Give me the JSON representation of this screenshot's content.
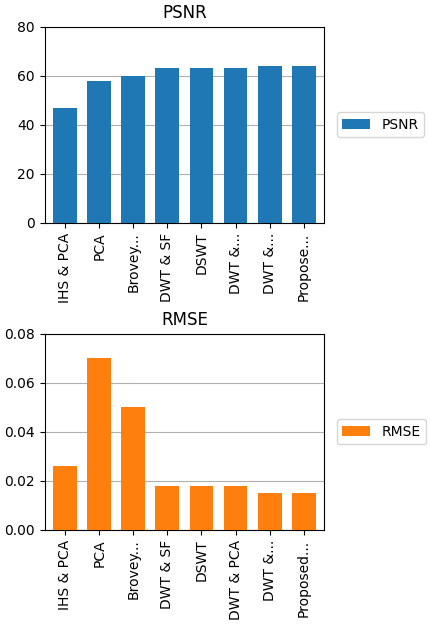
{
  "chart_data": [
    {
      "type": "bar",
      "title": "PSNR",
      "categories": [
        "IHS & PCA",
        "PCA",
        "Brovey...",
        "DWT & SF",
        "DSWT",
        "DWT &...",
        "DWT &...",
        "Propose..."
      ],
      "series": [
        {
          "name": "PSNR",
          "values": [
            47,
            58,
            60,
            63,
            63,
            63,
            64,
            64
          ]
        }
      ],
      "ylim": [
        0,
        80
      ],
      "yticks": [
        0,
        20,
        40,
        60,
        80
      ],
      "grid": true,
      "legend": "right"
    },
    {
      "type": "bar",
      "title": "RMSE",
      "categories": [
        "IHS & PCA",
        "PCA",
        "Brovey...",
        "DWT & SF",
        "DSWT",
        "DWT & PCA",
        "DWT &...",
        "Proposed..."
      ],
      "series": [
        {
          "name": "RMSE",
          "values": [
            0.026,
            0.07,
            0.05,
            0.018,
            0.018,
            0.018,
            0.015,
            0.015
          ]
        }
      ],
      "ylim": [
        0,
        0.08
      ],
      "yticks": [
        {
          "value": 0,
          "label": "0.00"
        },
        0.02,
        0.04,
        0.06,
        0.08
      ],
      "grid": true,
      "legend": "right"
    }
  ]
}
